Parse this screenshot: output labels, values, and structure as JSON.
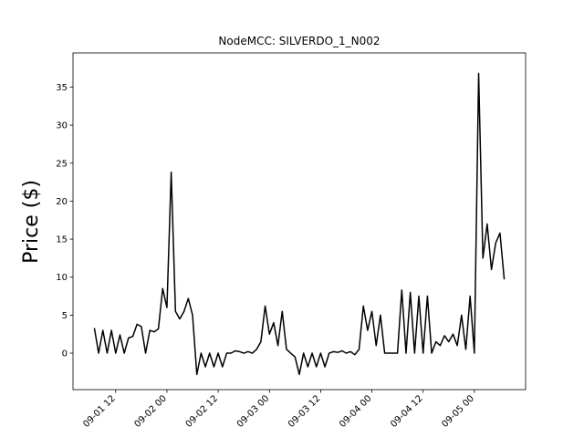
{
  "chart_data": {
    "type": "line",
    "title": "NodeMCC: SILVERDO_1_N002",
    "ylabel": "Price ($)",
    "color": "#000000",
    "x": [
      "09-01 07",
      "09-01 08",
      "09-01 09",
      "09-01 10",
      "09-01 11",
      "09-01 12",
      "09-01 13",
      "09-01 14",
      "09-01 15",
      "09-01 16",
      "09-01 17",
      "09-01 18",
      "09-01 19",
      "09-01 20",
      "09-01 21",
      "09-01 22",
      "09-01 23",
      "09-02 00",
      "09-02 01",
      "09-02 02",
      "09-02 03",
      "09-02 04",
      "09-02 05",
      "09-02 06",
      "09-02 07",
      "09-02 08",
      "09-02 09",
      "09-02 10",
      "09-02 11",
      "09-02 12",
      "09-02 13",
      "09-02 14",
      "09-02 15",
      "09-02 16",
      "09-02 17",
      "09-02 18",
      "09-02 19",
      "09-02 20",
      "09-02 21",
      "09-02 22",
      "09-02 23",
      "09-03 00",
      "09-03 01",
      "09-03 02",
      "09-03 03",
      "09-03 04",
      "09-03 05",
      "09-03 06",
      "09-03 07",
      "09-03 08",
      "09-03 09",
      "09-03 10",
      "09-03 11",
      "09-03 12",
      "09-03 13",
      "09-03 14",
      "09-03 15",
      "09-03 16",
      "09-03 17",
      "09-03 18",
      "09-03 19",
      "09-03 20",
      "09-03 21",
      "09-03 22",
      "09-03 23",
      "09-04 00",
      "09-04 01",
      "09-04 02",
      "09-04 03",
      "09-04 04",
      "09-04 05",
      "09-04 06",
      "09-04 07",
      "09-04 08",
      "09-04 09",
      "09-04 10",
      "09-04 11",
      "09-04 12",
      "09-04 13",
      "09-04 14",
      "09-04 15",
      "09-04 16",
      "09-04 17",
      "09-04 18",
      "09-04 19",
      "09-04 20",
      "09-04 21",
      "09-04 22",
      "09-04 23",
      "09-05 00",
      "09-05 01",
      "09-05 02",
      "09-05 03",
      "09-05 04",
      "09-05 05",
      "09-05 06",
      "09-05 07"
    ],
    "values": [
      3.3,
      0,
      3,
      0,
      3,
      0,
      2.4,
      0,
      2,
      2.2,
      3.8,
      3.5,
      0,
      3,
      2.8,
      3.2,
      8.5,
      6,
      23.8,
      5.5,
      4.5,
      5.5,
      7.2,
      5,
      -2.8,
      0,
      -1.8,
      0,
      -1.8,
      0,
      -1.8,
      0,
      0,
      0.3,
      0.2,
      0,
      0.2,
      0,
      0.5,
      1.5,
      6.2,
      2.5,
      4,
      1,
      5.5,
      0.5,
      0,
      -0.5,
      -2.8,
      0,
      -1.8,
      0,
      -1.8,
      0,
      -1.8,
      0,
      0.2,
      0.1,
      0.3,
      0,
      0.2,
      -0.2,
      0.5,
      6.2,
      3,
      5.5,
      1,
      5,
      0,
      0,
      0,
      0,
      8.3,
      0,
      8,
      0,
      7.5,
      0,
      7.5,
      0,
      1.5,
      1,
      2.3,
      1.5,
      2.5,
      1,
      5,
      0.5,
      7.5,
      0,
      36.8,
      12.5,
      17,
      11,
      14.5,
      15.8,
      9.7
    ],
    "xlim": [
      "09-01 02",
      "09-05 12"
    ],
    "xticks": [
      "09-01 12",
      "09-02 00",
      "09-02 12",
      "09-03 00",
      "09-03 12",
      "09-04 00",
      "09-04 12",
      "09-05 00"
    ],
    "ylim": [
      -4.8,
      39.5
    ],
    "yticks": [
      0,
      5,
      10,
      15,
      20,
      25,
      30,
      35
    ]
  }
}
